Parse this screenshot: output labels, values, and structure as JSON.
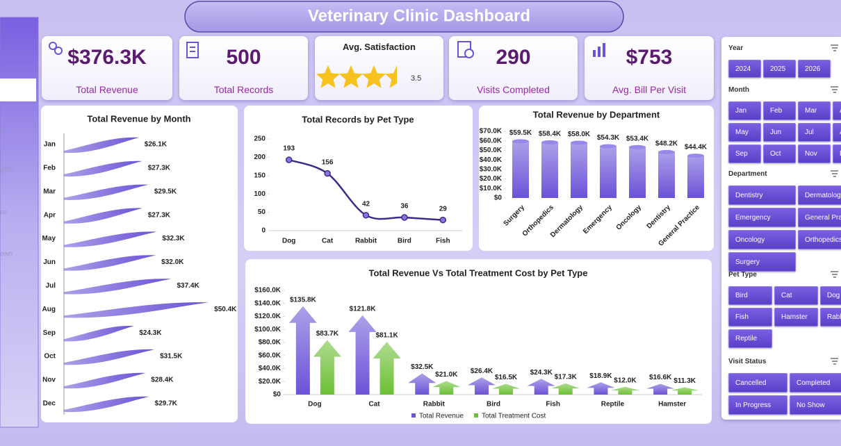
{
  "header": {
    "title": "Veterinary Clinic Dashboard"
  },
  "sidebar": {
    "items": [
      "s",
      "ghts",
      "ce",
      "own"
    ]
  },
  "kpis": [
    {
      "value": "$376.3K",
      "label": "Total Revenue"
    },
    {
      "value": "500",
      "label": "Total Records"
    },
    {
      "label": "Avg. Satisfaction",
      "value": 3.5
    },
    {
      "value": "290",
      "label": "Visits Completed"
    },
    {
      "value": "$753",
      "label": "Avg. Bill Per Visit"
    }
  ],
  "chart_data": [
    {
      "type": "hbar",
      "title": "Total Revenue  by Month",
      "categories": [
        "Jan",
        "Feb",
        "Mar",
        "Apr",
        "May",
        "Jun",
        "Jul",
        "Aug",
        "Sep",
        "Oct",
        "Nov",
        "Dec"
      ],
      "values": [
        26.1,
        27.3,
        29.5,
        27.3,
        32.3,
        32.0,
        37.4,
        50.4,
        24.3,
        31.5,
        28.4,
        29.7
      ],
      "value_labels": [
        "$26.1K",
        "$27.3K",
        "$29.5K",
        "$27.3K",
        "$32.3K",
        "$32.0K",
        "$37.4K",
        "$50.4K",
        "$24.3K",
        "$31.5K",
        "$28.4K",
        "$29.7K"
      ],
      "color": "#6b52d6"
    },
    {
      "type": "line",
      "title": "Total Records by Pet Type",
      "categories": [
        "Dog",
        "Cat",
        "Rabbit",
        "Bird",
        "Fish"
      ],
      "values": [
        193,
        156,
        42,
        36,
        29
      ],
      "ylim": [
        0,
        250
      ],
      "yticks": [
        0,
        50,
        100,
        150,
        200,
        250
      ],
      "color": "#3f2a87"
    },
    {
      "type": "bar",
      "title": "Total Revenue  by Department",
      "categories": [
        "Surgery",
        "Orthopedics",
        "Dermatology",
        "Emergency",
        "Oncology",
        "Dentistry",
        "General Practice"
      ],
      "values": [
        59500,
        58400,
        58000,
        54300,
        53400,
        48200,
        44400
      ],
      "value_labels": [
        "$59.5K",
        "$58.4K",
        "$58.0K",
        "$54.3K",
        "$53.4K",
        "$48.2K",
        "$44.4K"
      ],
      "ylim": [
        0,
        70000
      ],
      "yticks": [
        {
          "value": 0,
          "label": "$0"
        },
        {
          "value": 10000,
          "label": "$10.0K"
        },
        {
          "value": 20000,
          "label": "$20.0K"
        },
        {
          "value": 30000,
          "label": "$30.0K"
        },
        {
          "value": 40000,
          "label": "$40.0K"
        },
        {
          "value": 50000,
          "label": "$50.0K"
        },
        {
          "value": 60000,
          "label": "$60.0K"
        },
        {
          "value": 70000,
          "label": "$70.0K"
        }
      ],
      "color": "#6b52d6"
    },
    {
      "type": "arrow",
      "title": "Total Revenue Vs Total Treatment Cost by Pet Type",
      "categories": [
        "Dog",
        "Cat",
        "Rabbit",
        "Bird",
        "Fish",
        "Reptile",
        "Hamster"
      ],
      "series": [
        {
          "name": "Total Revenue",
          "color": "#6b52d6",
          "values": [
            135800,
            121800,
            32500,
            26400,
            24300,
            18900,
            16600
          ],
          "value_labels": [
            "$135.8K",
            "$121.8K",
            "$32.5K",
            "$26.4K",
            "$24.3K",
            "$18.9K",
            "$16.6K"
          ]
        },
        {
          "name": "Total Treatment Cost",
          "color": "#6cbf34",
          "values": [
            83700,
            81100,
            21000,
            16500,
            17300,
            12000,
            11300
          ],
          "value_labels": [
            "$83.7K",
            "$81.1K",
            "$21.0K",
            "$16.5K",
            "$17.3K",
            "$12.0K",
            "$11.3K"
          ]
        }
      ],
      "ylim": [
        0,
        160000
      ],
      "yticks": [
        {
          "value": 0,
          "label": "$0"
        },
        {
          "value": 20000,
          "label": "$20.0K"
        },
        {
          "value": 40000,
          "label": "$40.0K"
        },
        {
          "value": 60000,
          "label": "$60.0K"
        },
        {
          "value": 80000,
          "label": "$80.0K"
        },
        {
          "value": 100000,
          "label": "$100.0K"
        },
        {
          "value": 120000,
          "label": "$120.0K"
        },
        {
          "value": 140000,
          "label": "$140.0K"
        },
        {
          "value": 160000,
          "label": "$160.0K"
        }
      ],
      "legend": "bottom"
    }
  ],
  "slicers": [
    {
      "title": "Year",
      "items": [
        "2024",
        "2025",
        "2026"
      ]
    },
    {
      "title": "Month",
      "items": [
        "Jan",
        "Feb",
        "Mar",
        "Apr",
        "May",
        "Jun",
        "Jul",
        "Aug",
        "Sep",
        "Oct",
        "Nov",
        "Dec"
      ]
    },
    {
      "title": "Department",
      "items": [
        "Dentistry",
        "Dermatology",
        "Emergency",
        "General Practice",
        "Oncology",
        "Orthopedics",
        "Surgery"
      ]
    },
    {
      "title": "Pet Type",
      "items": [
        "Bird",
        "Cat",
        "Dog",
        "Fish",
        "Hamster",
        "Rabbit",
        "Reptile"
      ]
    },
    {
      "title": "Visit Status",
      "items": [
        "Cancelled",
        "Completed",
        "In Progress",
        "No Show"
      ]
    }
  ]
}
